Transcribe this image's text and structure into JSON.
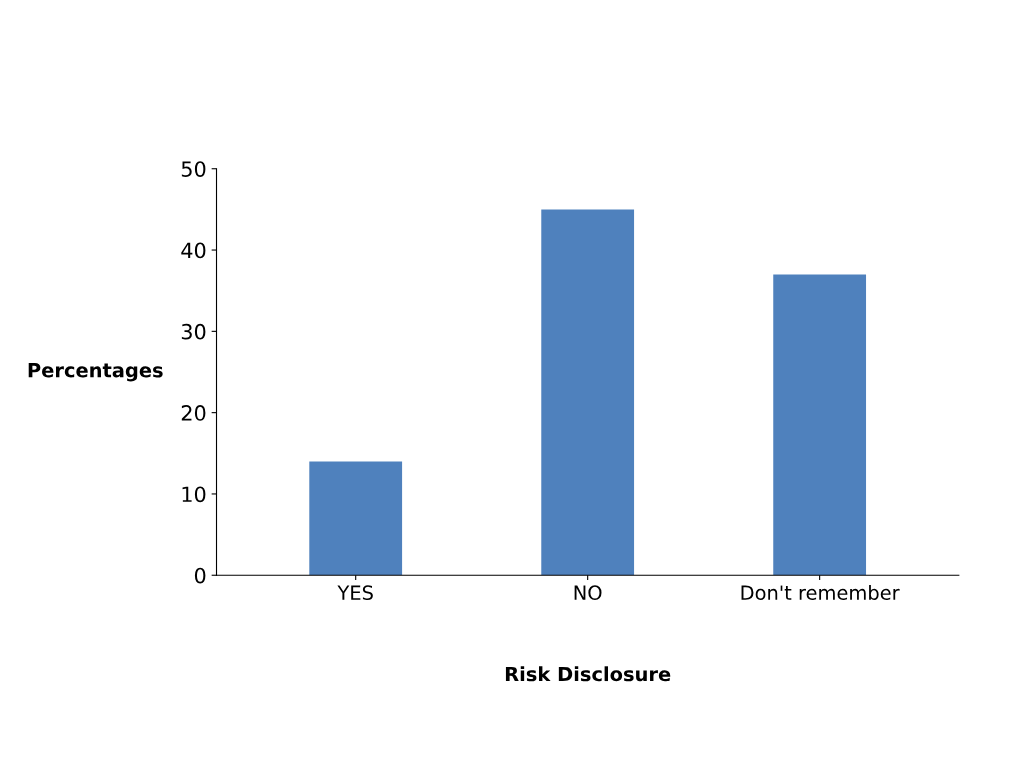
{
  "chart_data": {
    "type": "bar",
    "xlabel": "Risk Disclosure",
    "ylabel": "Percentages",
    "categories": [
      "YES",
      "NO",
      "Don't remember"
    ],
    "values": [
      14,
      45,
      37
    ],
    "color": "#4f81bd",
    "ylim": [
      0,
      50
    ],
    "yticks": [
      0,
      10,
      20,
      30,
      40,
      50
    ],
    "grid": false
  }
}
